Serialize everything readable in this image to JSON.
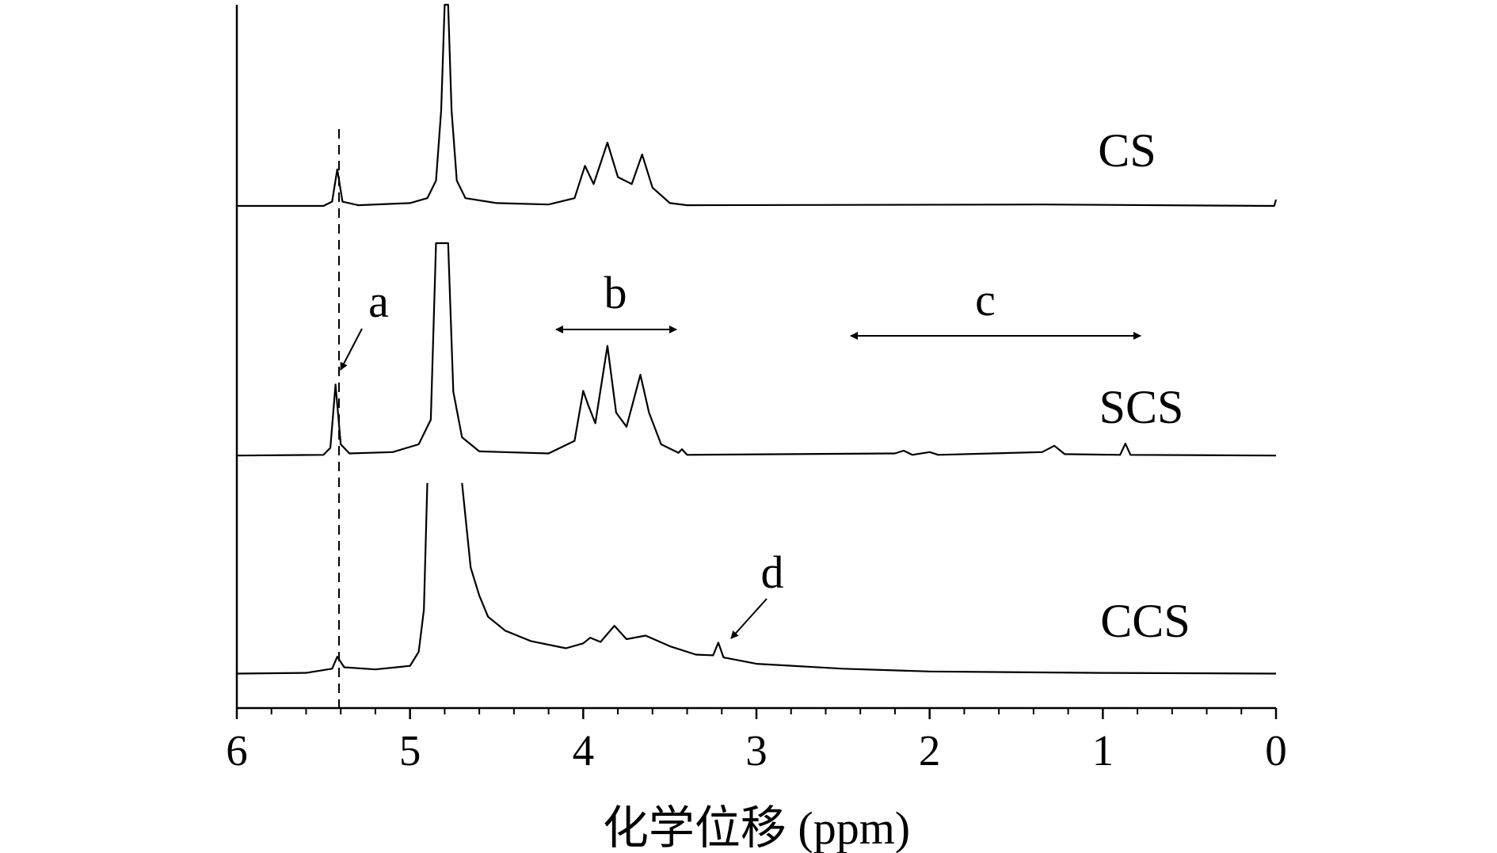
{
  "chart_data": {
    "type": "line",
    "x_label": "化学位移 (ppm)",
    "xlim": [
      6,
      0
    ],
    "xticks": [
      6,
      5,
      4,
      3,
      2,
      1,
      0
    ],
    "ylim": [
      0,
      100
    ],
    "annotations": [
      "a",
      "b",
      "c",
      "d"
    ],
    "series": [
      {
        "name": "CS",
        "color": "#000000",
        "x": [
          6,
          5.5,
          5.45,
          5.42,
          5.39,
          5.3,
          5.0,
          4.9,
          4.85,
          4.82,
          4.8,
          4.78,
          4.76,
          4.73,
          4.68,
          4.5,
          4.2,
          4.05,
          3.99,
          3.94,
          3.86,
          3.8,
          3.72,
          3.66,
          3.6,
          3.5,
          3.4,
          1.35,
          0.01,
          0
        ],
        "values": [
          71.4,
          71.4,
          72.0,
          76.6,
          72.0,
          71.5,
          71.8,
          72.5,
          75,
          85,
          100,
          100,
          85,
          75,
          72.5,
          71.8,
          71.6,
          72.5,
          77.1,
          74.5,
          80.4,
          75.5,
          74.5,
          78.7,
          74,
          71.8,
          71.5,
          71.6,
          71.4,
          72.3
        ]
      },
      {
        "name": "SCS",
        "color": "#000000",
        "x": [
          6,
          5.5,
          5.46,
          5.43,
          5.4,
          5.35,
          5.1,
          4.95,
          4.88,
          4.85,
          4.78,
          4.75,
          4.7,
          4.6,
          4.2,
          4.05,
          4.0,
          3.97,
          3.93,
          3.86,
          3.81,
          3.75,
          3.67,
          3.62,
          3.55,
          3.45,
          3.43,
          3.4,
          2.2,
          2.15,
          2.1,
          2.0,
          1.95,
          1.35,
          1.28,
          1.22,
          0.9,
          0.87,
          0.84,
          0
        ],
        "values": [
          35.9,
          36,
          37,
          46.0,
          37.5,
          36.2,
          36.4,
          37.5,
          41,
          66.1,
          66.1,
          45,
          38.5,
          36.5,
          36.2,
          38,
          45.1,
          43,
          40.5,
          51.5,
          42,
          40,
          47.4,
          42,
          37.5,
          36.3,
          36.8,
          36.0,
          36.2,
          36.6,
          36.0,
          36.4,
          36.0,
          36.4,
          37.3,
          36.1,
          36.0,
          37.6,
          36.0,
          35.9
        ]
      },
      {
        "name": "CCS",
        "color": "#000000",
        "x": [
          6,
          5.6,
          5.45,
          5.42,
          5.38,
          5.2,
          5.0,
          4.95,
          4.92,
          4.9,
          4.8,
          4.7,
          4.65,
          4.6,
          4.55,
          4.45,
          4.3,
          4.1,
          4.0,
          3.96,
          3.9,
          3.82,
          3.75,
          3.64,
          3.5,
          3.35,
          3.25,
          3.22,
          3.19,
          3.0,
          2.5,
          2.0,
          1.0,
          0
        ],
        "values": [
          4.9,
          5.0,
          5.6,
          7.3,
          5.8,
          5.5,
          6.0,
          8,
          14,
          32.0,
          null,
          32.0,
          20,
          16,
          13,
          11,
          9.5,
          8.5,
          9.2,
          10.0,
          9.4,
          11.7,
          9.8,
          10.3,
          8.8,
          7.6,
          7.5,
          9.3,
          7.2,
          6.3,
          5.6,
          5.2,
          5.0,
          4.9
        ]
      }
    ]
  }
}
